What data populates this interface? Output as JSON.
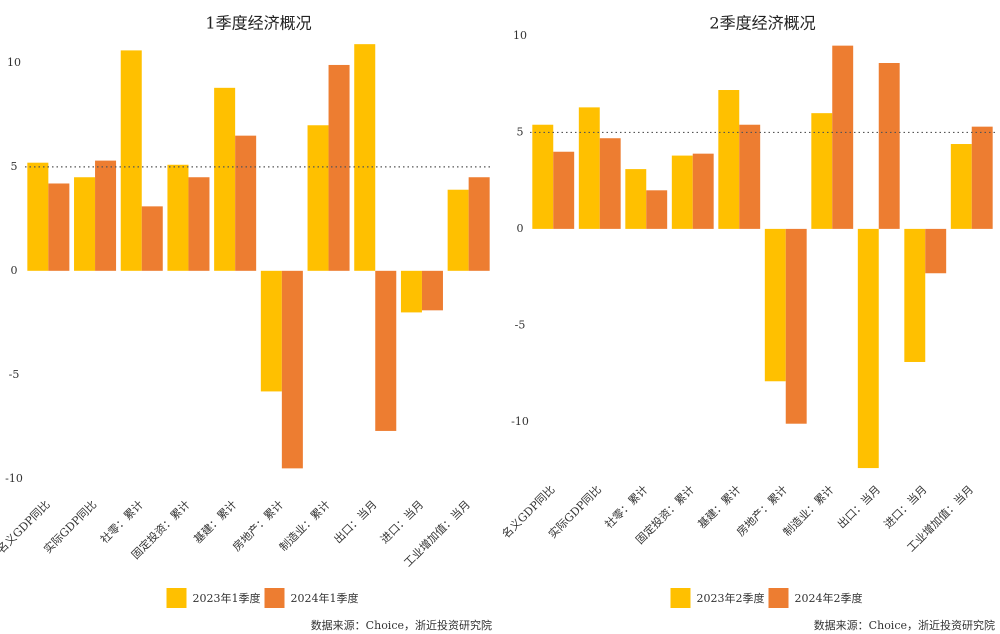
{
  "chart_data": [
    {
      "type": "bar",
      "title": "1季度经济概况",
      "categories": [
        "名义GDP同比",
        "实际GDP同比",
        "社零：累计",
        "固定投资：累计",
        "基建：累计",
        "房地产：累计",
        "制造业：累计",
        "出口：当月",
        "进口：当月",
        "工业增加值：当月"
      ],
      "series": [
        {
          "name": "2023年1季度",
          "color": "#FFC000",
          "values": [
            5.2,
            4.5,
            10.6,
            5.1,
            8.8,
            -5.8,
            7.0,
            10.9,
            -2.0,
            3.9
          ]
        },
        {
          "name": "2024年1季度",
          "color": "#ED7D31",
          "values": [
            4.2,
            5.3,
            3.1,
            4.5,
            6.5,
            -9.5,
            9.9,
            -7.7,
            -1.9,
            4.5
          ]
        }
      ],
      "ylim": [
        -10.3,
        11.1
      ],
      "yticks": [
        -10,
        -5,
        0,
        5,
        10
      ],
      "reference_line": 5,
      "source": "数据来源：Choice，浙近投资研究院"
    },
    {
      "type": "bar",
      "title": "2季度经济概况",
      "categories": [
        "名义GDP同比",
        "实际GDP同比",
        "社零：累计",
        "固定投资：累计",
        "基建：累计",
        "房地产：累计",
        "制造业：累计",
        "出口：当月",
        "进口：当月",
        "工业增加值：当月"
      ],
      "series": [
        {
          "name": "2023年2季度",
          "color": "#FFC000",
          "values": [
            5.4,
            6.3,
            3.1,
            3.8,
            7.2,
            -7.9,
            6.0,
            -12.4,
            -6.9,
            4.4
          ]
        },
        {
          "name": "2024年2季度",
          "color": "#ED7D31",
          "values": [
            4.0,
            4.7,
            2.0,
            3.9,
            5.4,
            -10.1,
            9.5,
            8.6,
            -2.3,
            5.3
          ]
        }
      ],
      "ylim": [
        -12.5,
        10
      ],
      "yticks": [
        -10,
        -5,
        0,
        5,
        10
      ],
      "reference_line": 5,
      "source": "数据来源：Choice，浙近投资研究院"
    }
  ]
}
